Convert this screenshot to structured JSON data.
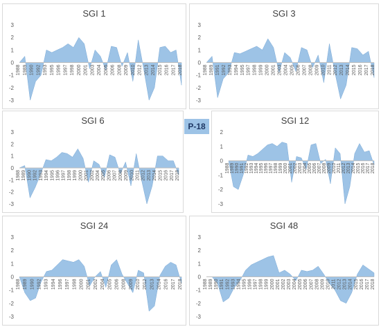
{
  "badge": "P-18",
  "colors": {
    "fill": "#9dc3e6",
    "stroke": "#7aa9d6",
    "axis": "#bfbfbf",
    "text": "#595959"
  },
  "chart_data": [
    {
      "type": "area",
      "title": "SGI 1",
      "ylim": [
        -3,
        3
      ],
      "yticks": [
        -3,
        -2,
        -1,
        0,
        1,
        2,
        3
      ],
      "xticks": [
        "1988",
        "1989",
        "1990",
        "1992",
        "1993",
        "1995",
        "1996",
        "1997",
        "1998",
        "2000",
        "2001",
        "2003",
        "2004",
        "2005",
        "2006",
        "2008",
        "2009",
        "2010",
        "2012",
        "2013",
        "2014",
        "2015",
        "2016",
        "2017",
        "2018"
      ],
      "x": [
        1988,
        1989,
        1990,
        1991,
        1992,
        1993,
        1994,
        1995,
        1996,
        1997,
        1998,
        1999,
        2000,
        2001,
        2002,
        2003,
        2004,
        2005,
        2006,
        2007,
        2008,
        2009,
        2010,
        2011,
        2012,
        2013,
        2014,
        2015,
        2016,
        2017,
        2018
      ],
      "y": [
        0,
        0.5,
        -3,
        -1.5,
        -1,
        1,
        0.8,
        1,
        1.2,
        1.5,
        1.2,
        2,
        1.5,
        -0.5,
        1,
        0.5,
        -0.6,
        1.3,
        1.2,
        -0.3,
        0.8,
        -1.5,
        1.8,
        -0.5,
        -3,
        -2,
        1.2,
        1.3,
        0.8,
        1,
        -1.8
      ]
    },
    {
      "type": "area",
      "title": "SGI 3",
      "ylim": [
        -3,
        3
      ],
      "yticks": [
        -3,
        -2,
        -1,
        0,
        1,
        2,
        3
      ],
      "xticks": [
        "1988",
        "1989",
        "1991",
        "1992",
        "1993",
        "1994",
        "1995",
        "1997",
        "1998",
        "1999",
        "2000",
        "2001",
        "2003",
        "2004",
        "2005",
        "2006",
        "2007",
        "2008",
        "2009",
        "2010",
        "2011",
        "2012",
        "2013",
        "2014",
        "2015",
        "2016",
        "2017",
        "2018"
      ],
      "x": [
        1988,
        1989,
        1990,
        1991,
        1992,
        1993,
        1994,
        1995,
        1996,
        1997,
        1998,
        1999,
        2000,
        2001,
        2002,
        2003,
        2004,
        2005,
        2006,
        2007,
        2008,
        2009,
        2010,
        2011,
        2012,
        2013,
        2014,
        2015,
        2016,
        2017,
        2018
      ],
      "y": [
        0,
        0.5,
        -2.8,
        -1.3,
        -0.8,
        0.8,
        0.7,
        0.9,
        1.1,
        1.3,
        1,
        1.9,
        1.2,
        -0.8,
        0.8,
        0.4,
        -0.7,
        1.2,
        1,
        -0.4,
        0.6,
        -1.6,
        1.5,
        -0.8,
        -2.9,
        -1.8,
        1.2,
        1.1,
        0.6,
        0.9,
        -1.2
      ]
    },
    {
      "type": "area",
      "title": "SGI 6",
      "ylim": [
        -3,
        3
      ],
      "yticks": [
        -3,
        -2,
        -1,
        0,
        1,
        2,
        3
      ],
      "xticks": [
        "1988",
        "1989",
        "1990",
        "1992",
        "1993",
        "1994",
        "1995",
        "1996",
        "1997",
        "1998",
        "1999",
        "2000",
        "2001",
        "2002",
        "2004",
        "2005",
        "2006",
        "2007",
        "2008",
        "2009",
        "2010",
        "2011",
        "2012",
        "2013",
        "2014",
        "2015",
        "2016",
        "2017",
        "2018"
      ],
      "x": [
        1988,
        1989,
        1990,
        1991,
        1992,
        1993,
        1994,
        1995,
        1996,
        1997,
        1998,
        1999,
        2000,
        2001,
        2002,
        2003,
        2004,
        2005,
        2006,
        2007,
        2008,
        2009,
        2010,
        2011,
        2012,
        2013,
        2014,
        2015,
        2016,
        2017,
        2018
      ],
      "y": [
        0,
        0.2,
        -2.5,
        -1.6,
        -0.5,
        0.7,
        0.6,
        0.9,
        1.3,
        1.2,
        0.9,
        1.6,
        0.8,
        -1.2,
        0.6,
        0.3,
        -0.8,
        1.1,
        0.9,
        -0.5,
        0.5,
        -1.5,
        1.2,
        -1,
        -3,
        -1.5,
        1,
        1,
        0.6,
        0.6,
        -0.6
      ]
    },
    {
      "type": "area",
      "title": "SGI 12",
      "ylim": [
        -3,
        2
      ],
      "yticks": [
        -3,
        -2,
        -1,
        0,
        1,
        2
      ],
      "xticks": [
        "1988",
        "1989",
        "1990",
        "1991",
        "1992",
        "1993",
        "1994",
        "1995",
        "1996",
        "1997",
        "1998",
        "1999",
        "2000",
        "2001",
        "2002",
        "2003",
        "2004",
        "2005",
        "2006",
        "2007",
        "2008",
        "2009",
        "2010",
        "2011",
        "2012",
        "2013",
        "2014",
        "2015",
        "2016",
        "2017",
        "2018"
      ],
      "x": [
        1988,
        1989,
        1990,
        1991,
        1992,
        1993,
        1994,
        1995,
        1996,
        1997,
        1998,
        1999,
        2000,
        2001,
        2002,
        2003,
        2004,
        2005,
        2006,
        2007,
        2008,
        2009,
        2010,
        2011,
        2012,
        2013,
        2014,
        2015,
        2016,
        2017,
        2018
      ],
      "y": [
        0,
        -1.8,
        -2,
        -1,
        0.4,
        0.3,
        0.5,
        0.8,
        1.1,
        1.2,
        1,
        1.3,
        1.2,
        -1.5,
        0.3,
        0.2,
        -0.6,
        1.1,
        1.2,
        -0.2,
        0.1,
        -1.6,
        0.9,
        0.5,
        -3,
        -1.8,
        0.5,
        1.2,
        0.6,
        0.7,
        -0.3
      ]
    },
    {
      "type": "area",
      "title": "SGI 24",
      "ylim": [
        -3,
        3
      ],
      "yticks": [
        -3,
        -2,
        -1,
        0,
        1,
        2,
        3
      ],
      "xticks": [
        "1988",
        "1989",
        "1990",
        "1992",
        "1993",
        "1994",
        "1996",
        "1997",
        "1998",
        "2000",
        "2001",
        "2002",
        "2004",
        "2005",
        "2006",
        "2008",
        "2009",
        "2010",
        "2012",
        "2013",
        "2014",
        "2016",
        "2017",
        "2018"
      ],
      "x": [
        1988,
        1989,
        1990,
        1991,
        1992,
        1993,
        1994,
        1995,
        1996,
        1997,
        1998,
        1999,
        2000,
        2001,
        2002,
        2003,
        2004,
        2005,
        2006,
        2007,
        2008,
        2009,
        2010,
        2011,
        2012,
        2013,
        2014,
        2015,
        2016,
        2017,
        2018
      ],
      "y": [
        0,
        -1.2,
        -1.8,
        -1.6,
        -0.4,
        0.4,
        0.5,
        0.9,
        1.3,
        1.2,
        1.1,
        1.3,
        0.8,
        -0.7,
        0,
        0.4,
        -0.8,
        0.9,
        1.3,
        0.2,
        -0.5,
        -1.2,
        0.5,
        0.3,
        -2.6,
        -2.2,
        0.1,
        0.8,
        1.1,
        0.9,
        -0.5
      ]
    },
    {
      "type": "area",
      "title": "SGI 48",
      "ylim": [
        -3,
        3
      ],
      "yticks": [
        -3,
        -2,
        -1,
        0,
        1,
        2,
        3
      ],
      "xticks": [
        "1988",
        "1989",
        "1990",
        "1991",
        "1992",
        "1993",
        "1994",
        "1995",
        "1996",
        "1997",
        "1998",
        "1999",
        "2000",
        "2001",
        "2002",
        "2003",
        "2004",
        "2005",
        "2006",
        "2007",
        "2008",
        "2009",
        "2010",
        "2011",
        "2012",
        "2013",
        "2014",
        "2015",
        "2016",
        "2017",
        "2018"
      ],
      "x": [
        1988,
        1989,
        1990,
        1991,
        1992,
        1993,
        1994,
        1995,
        1996,
        1997,
        1998,
        1999,
        2000,
        2001,
        2002,
        2003,
        2004,
        2005,
        2006,
        2007,
        2008,
        2009,
        2010,
        2011,
        2012,
        2013,
        2014,
        2015,
        2016,
        2017,
        2018
      ],
      "y": [
        0,
        0,
        -0.5,
        -1.9,
        -1.6,
        -0.8,
        -0.3,
        0.5,
        0.9,
        1.1,
        1.3,
        1.5,
        1.6,
        0.3,
        0.5,
        0.2,
        -0.3,
        0.5,
        0.4,
        0.5,
        0.8,
        0.2,
        -0.5,
        -1,
        -1.8,
        -2,
        -1.2,
        0.2,
        0.9,
        0.6,
        0.3
      ]
    }
  ]
}
